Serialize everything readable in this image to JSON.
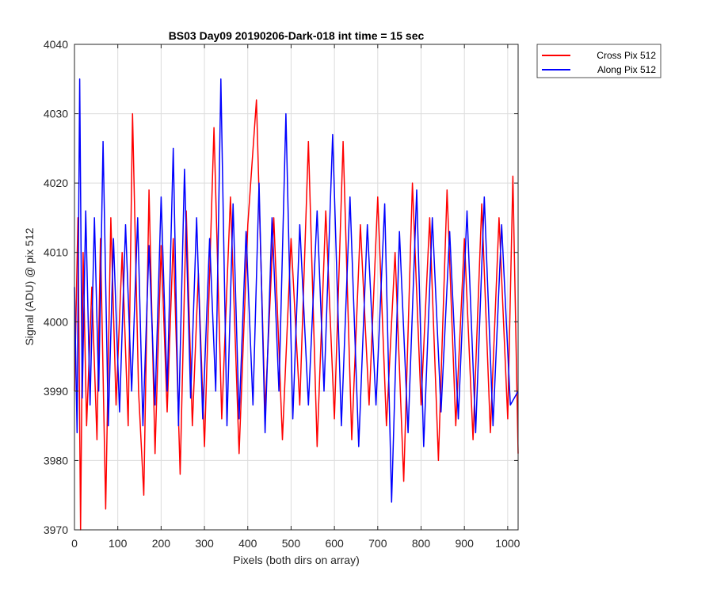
{
  "chart_data": {
    "type": "line",
    "title": "BS03 Day09 20190206-Dark-018 int time = 15 sec",
    "xlabel": "Pixels (both dirs on array)",
    "ylabel": "Signal (ADU) @ pix 512",
    "xlim": [
      0,
      1024
    ],
    "ylim": [
      3970,
      4040
    ],
    "xticks": [
      0,
      100,
      200,
      300,
      400,
      500,
      600,
      700,
      800,
      900,
      1000
    ],
    "yticks": [
      3970,
      3980,
      3990,
      4000,
      4010,
      4020,
      4030,
      4040
    ],
    "grid": true,
    "legend_position": "outside-top-right",
    "series": [
      {
        "name": "Cross Pix 512",
        "color": "#ff0000",
        "x": [
          0,
          8,
          14,
          20,
          28,
          40,
          52,
          60,
          72,
          84,
          96,
          110,
          124,
          134,
          148,
          160,
          172,
          186,
          200,
          214,
          228,
          244,
          258,
          272,
          286,
          300,
          322,
          340,
          360,
          380,
          400,
          420,
          440,
          460,
          480,
          500,
          520,
          540,
          560,
          580,
          600,
          620,
          640,
          660,
          680,
          700,
          720,
          740,
          760,
          780,
          800,
          820,
          840,
          860,
          880,
          900,
          920,
          940,
          960,
          980,
          1000,
          1012,
          1024
        ],
        "y": [
          3990,
          4015,
          3970,
          4010,
          3985,
          4005,
          3983,
          4012,
          3973,
          4015,
          3988,
          4010,
          3985,
          4030,
          3990,
          3975,
          4019,
          3981,
          4011,
          3987,
          4012,
          3978,
          4016,
          3985,
          4007,
          3982,
          4028,
          3986,
          4018,
          3981,
          4014,
          4032,
          3987,
          4015,
          3983,
          4012,
          3988,
          4026,
          3982,
          4016,
          3986,
          4026,
          3983,
          4014,
          3988,
          4018,
          3985,
          4010,
          3977,
          4020,
          3988,
          4015,
          3980,
          4019,
          3985,
          4012,
          3983,
          4017,
          3984,
          4015,
          3986,
          4021,
          3981
        ]
      },
      {
        "name": "Along Pix 512",
        "color": "#0000ff",
        "x": [
          0,
          6,
          12,
          18,
          26,
          36,
          46,
          56,
          66,
          78,
          90,
          104,
          118,
          132,
          146,
          158,
          172,
          186,
          200,
          214,
          228,
          240,
          254,
          268,
          282,
          296,
          312,
          326,
          338,
          352,
          366,
          380,
          396,
          412,
          426,
          440,
          456,
          472,
          488,
          504,
          520,
          540,
          560,
          576,
          596,
          616,
          636,
          656,
          676,
          696,
          716,
          732,
          750,
          770,
          790,
          806,
          826,
          846,
          866,
          886,
          906,
          926,
          946,
          966,
          986,
          1006,
          1024
        ],
        "y": [
          4005,
          3984,
          4035,
          3989,
          4016,
          3988,
          4015,
          3990,
          4026,
          3985,
          4012,
          3987,
          4014,
          3990,
          4015,
          3985,
          4011,
          3988,
          4018,
          3990,
          4025,
          3985,
          4022,
          3989,
          4015,
          3986,
          4012,
          3990,
          4035,
          3985,
          4017,
          3986,
          4013,
          3988,
          4020,
          3984,
          4015,
          3990,
          4030,
          3986,
          4014,
          3988,
          4016,
          3990,
          4027,
          3985,
          4018,
          3982,
          4014,
          3988,
          4017,
          3974,
          4013,
          3984,
          4019,
          3982,
          4015,
          3987,
          4013,
          3986,
          4016,
          3984,
          4018,
          3985,
          4014,
          3988,
          3990
        ]
      }
    ]
  }
}
